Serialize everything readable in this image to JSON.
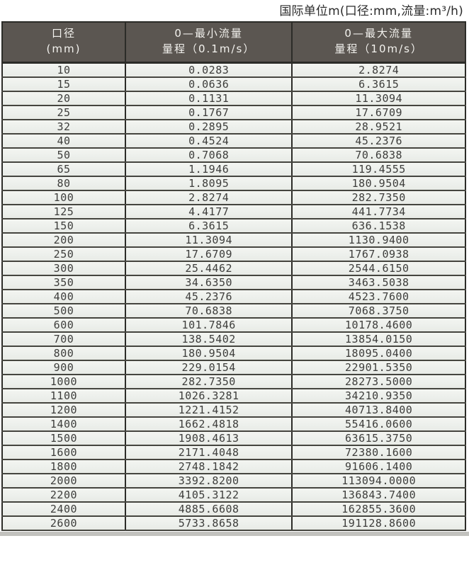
{
  "page": {
    "title": "国际单位m(口径:mm,流量:m³/h)"
  },
  "table": {
    "headers": [
      {
        "line1": "口径",
        "line2": "(mm)"
      },
      {
        "line1": "0—最小流量",
        "line2": "量程（0.1m/s）"
      },
      {
        "line1": "0—最大流量",
        "line2": "量程（10m/s）"
      }
    ],
    "rows": [
      [
        "10",
        "0.0283",
        "2.8274"
      ],
      [
        "15",
        "0.0636",
        "6.3615"
      ],
      [
        "20",
        "0.1131",
        "11.3094"
      ],
      [
        "25",
        "0.1767",
        "17.6709"
      ],
      [
        "32",
        "0.2895",
        "28.9521"
      ],
      [
        "40",
        "0.4524",
        "45.2376"
      ],
      [
        "50",
        "0.7068",
        "70.6838"
      ],
      [
        "65",
        "1.1946",
        "119.4555"
      ],
      [
        "80",
        "1.8095",
        "180.9504"
      ],
      [
        "100",
        "2.8274",
        "282.7350"
      ],
      [
        "125",
        "4.4177",
        "441.7734"
      ],
      [
        "150",
        "6.3615",
        "636.1538"
      ],
      [
        "200",
        "11.3094",
        "1130.9400"
      ],
      [
        "250",
        "17.6709",
        "1767.0938"
      ],
      [
        "300",
        "25.4462",
        "2544.6150"
      ],
      [
        "350",
        "34.6350",
        "3463.5038"
      ],
      [
        "400",
        "45.2376",
        "4523.7600"
      ],
      [
        "500",
        "70.6838",
        "7068.3750"
      ],
      [
        "600",
        "101.7846",
        "10178.4600"
      ],
      [
        "700",
        "138.5402",
        "13854.0150"
      ],
      [
        "800",
        "180.9504",
        "18095.0400"
      ],
      [
        "900",
        "229.0154",
        "22901.5350"
      ],
      [
        "1000",
        "282.7350",
        "28273.5000"
      ],
      [
        "1100",
        "1026.3281",
        "34210.9350"
      ],
      [
        "1200",
        "1221.4152",
        "40713.8400"
      ],
      [
        "1400",
        "1662.4818",
        "55416.0600"
      ],
      [
        "1500",
        "1908.4613",
        "63615.3750"
      ],
      [
        "1600",
        "2171.4048",
        "72380.1600"
      ],
      [
        "1800",
        "2748.1842",
        "91606.1400"
      ],
      [
        "2000",
        "3392.8200",
        "113094.0000"
      ],
      [
        "2200",
        "4105.3122",
        "136843.7400"
      ],
      [
        "2400",
        "4885.6608",
        "162855.3600"
      ],
      [
        "2600",
        "5733.8658",
        "191128.8600"
      ]
    ]
  },
  "colors": {
    "header_bg": "#5b5651",
    "header_text": "#f3f2ee",
    "cell_bg": "#edf0ec",
    "grid_line": "#2c2c28",
    "row_separator": "#45453f",
    "value_text": "#3d3d3b",
    "title_text": "#2b2b2b"
  },
  "chart_data": {
    "type": "table",
    "title": "国际单位m(口径:mm,流量:m³/h)",
    "columns": [
      "口径(mm)",
      "0—最小流量 量程（0.1m/s）",
      "0—最大流量 量程（10m/s）"
    ],
    "rows": [
      [
        10,
        0.0283,
        2.8274
      ],
      [
        15,
        0.0636,
        6.3615
      ],
      [
        20,
        0.1131,
        11.3094
      ],
      [
        25,
        0.1767,
        17.6709
      ],
      [
        32,
        0.2895,
        28.9521
      ],
      [
        40,
        0.4524,
        45.2376
      ],
      [
        50,
        0.7068,
        70.6838
      ],
      [
        65,
        1.1946,
        119.4555
      ],
      [
        80,
        1.8095,
        180.9504
      ],
      [
        100,
        2.8274,
        282.735
      ],
      [
        125,
        4.4177,
        441.7734
      ],
      [
        150,
        6.3615,
        636.1538
      ],
      [
        200,
        11.3094,
        1130.94
      ],
      [
        250,
        17.6709,
        1767.0938
      ],
      [
        300,
        25.4462,
        2544.615
      ],
      [
        350,
        34.635,
        3463.5038
      ],
      [
        400,
        45.2376,
        4523.76
      ],
      [
        500,
        70.6838,
        7068.375
      ],
      [
        600,
        101.7846,
        10178.46
      ],
      [
        700,
        138.5402,
        13854.015
      ],
      [
        800,
        180.9504,
        18095.04
      ],
      [
        900,
        229.0154,
        22901.535
      ],
      [
        1000,
        282.735,
        28273.5
      ],
      [
        1100,
        1026.3281,
        34210.935
      ],
      [
        1200,
        1221.4152,
        40713.84
      ],
      [
        1400,
        1662.4818,
        55416.06
      ],
      [
        1500,
        1908.4613,
        63615.375
      ],
      [
        1600,
        2171.4048,
        72380.16
      ],
      [
        1800,
        2748.1842,
        91606.14
      ],
      [
        2000,
        3392.82,
        113094.0
      ],
      [
        2200,
        4105.3122,
        136843.74
      ],
      [
        2400,
        4885.6608,
        162855.36
      ],
      [
        2600,
        5733.8658,
        191128.86
      ]
    ]
  }
}
